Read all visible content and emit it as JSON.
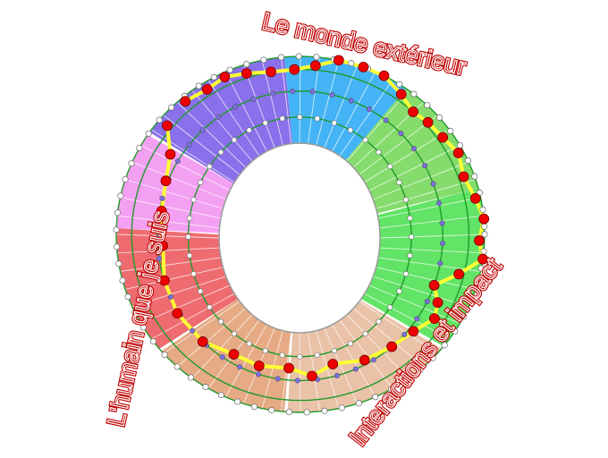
{
  "labels": {
    "top": "Le monde extérieur",
    "left": "L'humain que je suis",
    "bottom_right": "Interactions et impact"
  },
  "colors": {
    "label_text": "#c00000",
    "ring_lines": "#1f9a2a",
    "path_line": "#ffff33",
    "path_nodes": "#ee0000",
    "mid_nodes": "#7b6fe0",
    "outer_nodes": "#ffffff",
    "sectors": [
      "#8a70ea",
      "#44b4f6",
      "#85dc6c",
      "#62e466",
      "#e9c2a8",
      "#e6ab85",
      "#ee6c70",
      "#f4a0f2"
    ]
  }
}
